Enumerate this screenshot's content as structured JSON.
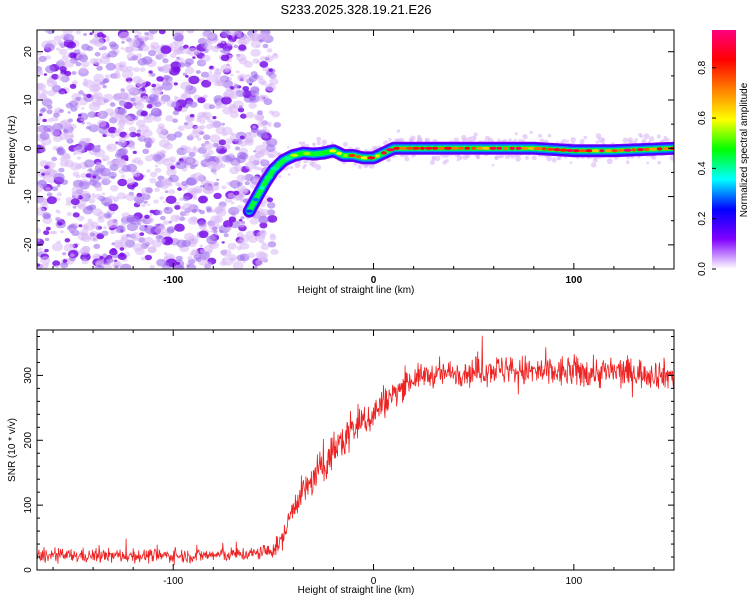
{
  "title": "S233.2025.328.19.21.E26",
  "chart_data": [
    {
      "type": "heatmap",
      "name": "spectrogram",
      "xlabel": "Height of straight line (km)",
      "ylabel": "Frequency (Hz)",
      "xlim": [
        -168,
        150
      ],
      "ylim": [
        -25,
        24.5
      ],
      "xticks": [
        -100,
        0,
        100
      ],
      "yticks": [
        -20,
        -10,
        0,
        10,
        20
      ],
      "colorbar": {
        "label": "Normalized spectral amplitude",
        "range": [
          0.0,
          0.95
        ],
        "ticks": [
          0.0,
          0.2,
          0.4,
          0.6,
          0.8
        ],
        "tick_labels": [
          "0.0",
          "0.2",
          "0.4",
          "0.6",
          "0.8"
        ],
        "colors": [
          "#ffffff",
          "#8000ff",
          "#0000ff",
          "#00ffff",
          "#00ff00",
          "#ffff00",
          "#ff8000",
          "#ff0000",
          "#ff0080"
        ]
      },
      "noise_region": {
        "x_range": [
          -168,
          -50
        ],
        "amplitude": 0.12
      },
      "ridge": {
        "x": [
          -62,
          -58,
          -54,
          -50,
          -45,
          -40,
          -35,
          -30,
          -25,
          -20,
          -15,
          -10,
          -5,
          0,
          10,
          20,
          40,
          60,
          80,
          100,
          120,
          150
        ],
        "frequency_hz": [
          -13,
          -10,
          -7,
          -4.5,
          -2.5,
          -1.5,
          -1,
          -1.2,
          -1,
          -0.5,
          -1.5,
          -1.5,
          -2,
          -2,
          0,
          0,
          0,
          0,
          0,
          -0.5,
          -0.5,
          0
        ],
        "amplitude": [
          0.25,
          0.35,
          0.4,
          0.45,
          0.5,
          0.55,
          0.55,
          0.6,
          0.6,
          0.65,
          0.7,
          0.75,
          0.8,
          0.8,
          0.85,
          0.85,
          0.85,
          0.85,
          0.85,
          0.85,
          0.85,
          0.85
        ]
      }
    },
    {
      "type": "line",
      "name": "snr",
      "xlabel": "Height of straight line (km)",
      "ylabel": "SNR (10 * v/v)",
      "xlim": [
        -168,
        150
      ],
      "ylim": [
        0,
        370
      ],
      "xticks": [
        -100,
        0,
        100
      ],
      "yticks": [
        0,
        100,
        200,
        300
      ],
      "series": [
        {
          "name": "SNR",
          "color": "#ee2222",
          "x": [
            -168,
            -150,
            -120,
            -90,
            -60,
            -50,
            -45,
            -40,
            -35,
            -30,
            -25,
            -20,
            -15,
            -10,
            -5,
            0,
            5,
            10,
            15,
            20,
            25,
            30,
            40,
            50,
            60,
            80,
            100,
            120,
            140,
            150
          ],
          "y": [
            22,
            22,
            22,
            22,
            25,
            30,
            50,
            100,
            120,
            140,
            160,
            185,
            200,
            220,
            230,
            240,
            260,
            270,
            285,
            295,
            300,
            300,
            305,
            305,
            310,
            305,
            305,
            305,
            303,
            300
          ],
          "noise": [
            12,
            12,
            12,
            12,
            12,
            14,
            18,
            22,
            28,
            32,
            32,
            32,
            35,
            35,
            32,
            30,
            28,
            26,
            22,
            22,
            20,
            20,
            22,
            25,
            25,
            28,
            28,
            28,
            25,
            25
          ]
        }
      ]
    }
  ]
}
